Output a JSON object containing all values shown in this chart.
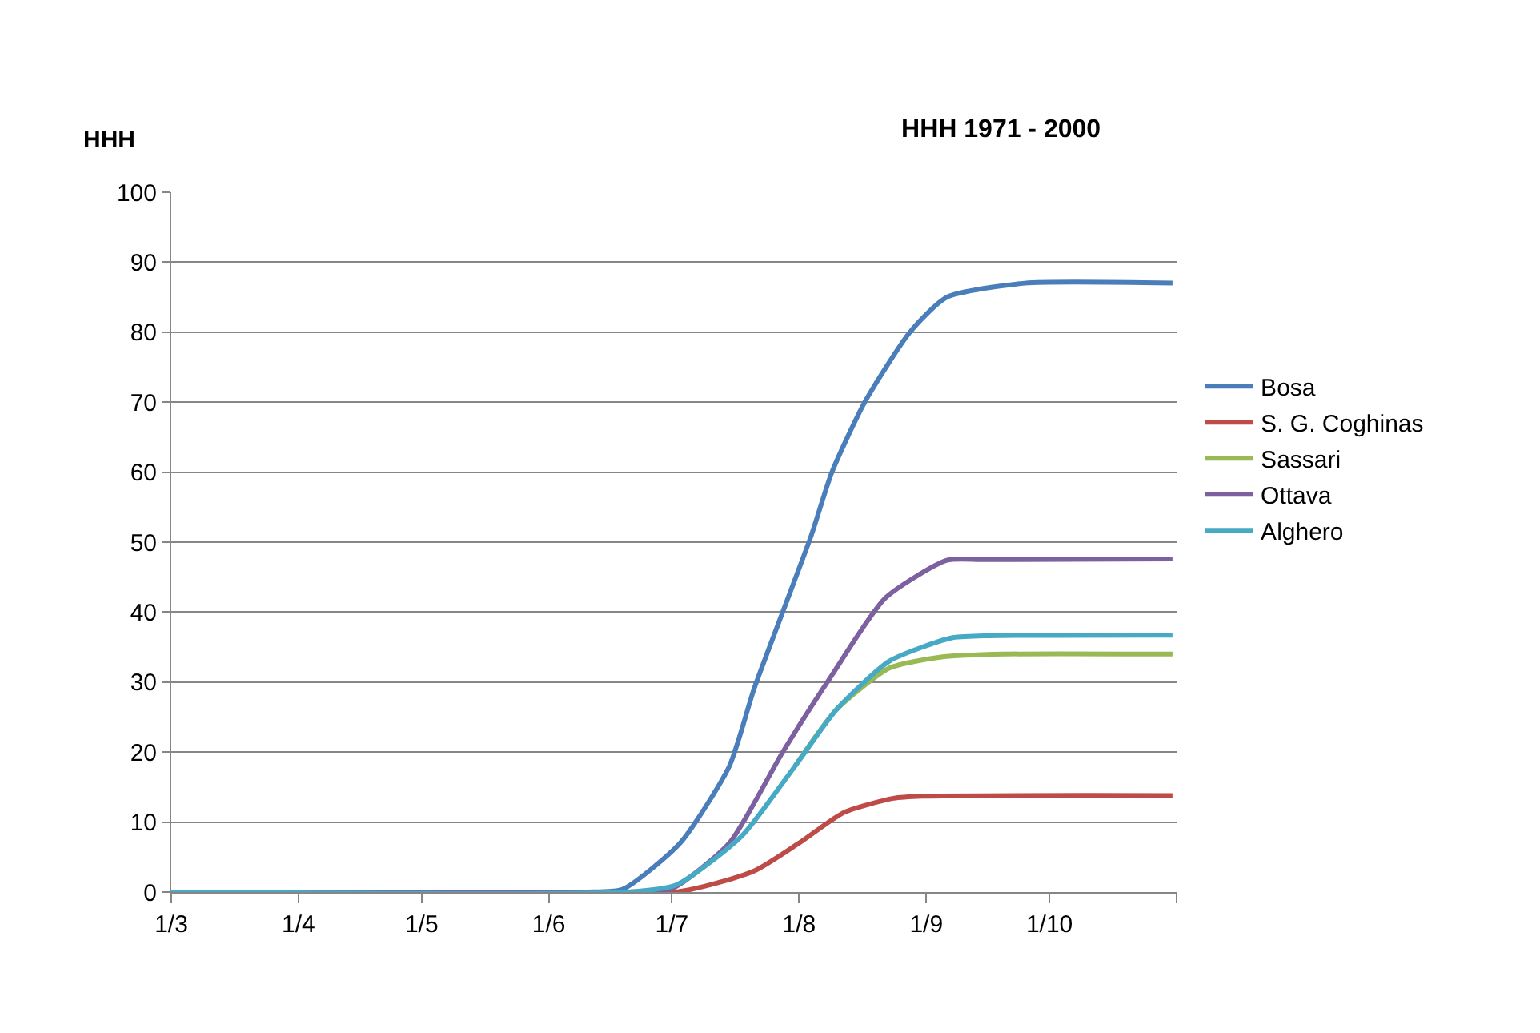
{
  "chart_data": {
    "type": "line",
    "title": "HHH 1971 - 2000",
    "ylabel": "HHH",
    "xlim": [
      "--03-01",
      "--11-01"
    ],
    "xticks": [
      {
        "value": "--03-01",
        "label": "1/3"
      },
      {
        "value": "--04-01",
        "label": "1/4"
      },
      {
        "value": "--05-01",
        "label": "1/5"
      },
      {
        "value": "--06-01",
        "label": "1/6"
      },
      {
        "value": "--07-01",
        "label": "1/7"
      },
      {
        "value": "--08-01",
        "label": "1/8"
      },
      {
        "value": "--09-01",
        "label": "1/9"
      },
      {
        "value": "--10-01",
        "label": "1/10"
      },
      {
        "value": "--11-01",
        "label": null
      }
    ],
    "ylim": [
      0,
      100
    ],
    "yticks": [
      0,
      10,
      20,
      30,
      40,
      50,
      60,
      70,
      80,
      90,
      100
    ],
    "grid": "y",
    "legend": "right",
    "marker": "none",
    "line_style": "solid",
    "series": [
      {
        "name": "Bosa",
        "color": "#4a7ebb",
        "x": [
          "--03-01",
          "--06-10",
          "--06-19",
          "--07-03",
          "--07-15",
          "--07-21",
          "--07-28",
          "--08-04",
          "--08-09",
          "--08-17",
          "--08-28",
          "--09-06",
          "--09-25",
          "--10-31"
        ],
        "values": [
          0,
          0,
          0.4,
          7,
          18,
          29,
          40,
          51,
          60,
          70,
          80,
          85,
          87,
          87
        ]
      },
      {
        "name": "S. G. Coghinas",
        "color": "#be4b48",
        "x": [
          "--03-01",
          "--07-02",
          "--07-21",
          "--08-01",
          "--08-12",
          "--08-24",
          "--08-31",
          "--10-31"
        ],
        "values": [
          0,
          0,
          3,
          7,
          11.4,
          13.4,
          13.7,
          13.8
        ]
      },
      {
        "name": "Sassari",
        "color": "#98b954",
        "x": [
          "--07-31",
          "--08-10",
          "--08-23",
          "--09-05",
          "--09-20",
          "--10-31"
        ],
        "values": [
          18,
          26,
          32,
          33.6,
          34,
          34
        ]
      },
      {
        "name": "Ottava",
        "color": "#7d60a0",
        "x": [
          "--03-01",
          "--06-20",
          "--07-01",
          "--07-15",
          "--07-28",
          "--08-09",
          "--08-22",
          "--09-06",
          "--09-15",
          "--10-31"
        ],
        "values": [
          0,
          0,
          0.5,
          7,
          20,
          31,
          42,
          47.4,
          47.5,
          47.6
        ]
      },
      {
        "name": "Alghero",
        "color": "#46aac5",
        "x": [
          "--03-01",
          "--06-20",
          "--07-02",
          "--07-18",
          "--07-31",
          "--08-10",
          "--08-23",
          "--09-07",
          "--09-15",
          "--10-31"
        ],
        "values": [
          0,
          0,
          1,
          8,
          18,
          26,
          33,
          36.3,
          36.6,
          36.7
        ]
      }
    ]
  }
}
